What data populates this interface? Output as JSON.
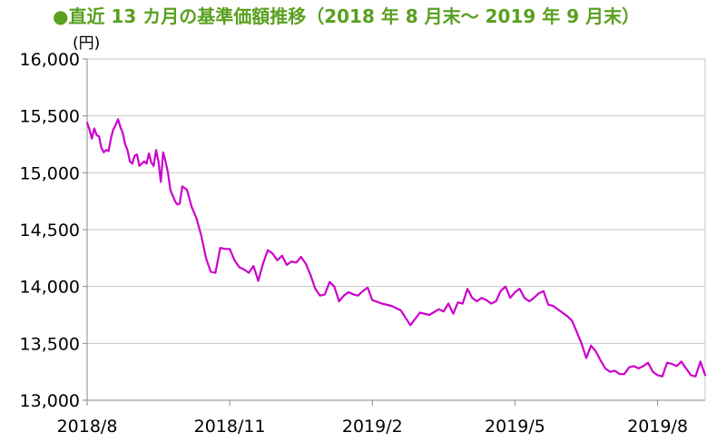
{
  "chart_data": {
    "type": "line",
    "title": "●直近 13 カ月の基準価額推移（2018 年 8 月末～ 2019 年 9 月末）",
    "unit_label": "(円)",
    "xlabel": "",
    "ylabel": "",
    "ylim": [
      13000,
      16000
    ],
    "y_ticks": [
      "13,000",
      "13,500",
      "14,000",
      "14,500",
      "15,000",
      "15,500",
      "16,000"
    ],
    "x_ticks": [
      "2018/8",
      "2018/11",
      "2019/2",
      "2019/5",
      "2019/8"
    ],
    "x_range": [
      0,
      13
    ],
    "grid": true,
    "legend": "none",
    "line_color": "#cc00cc",
    "title_color": "#5aa020",
    "series": [
      {
        "x": [
          0.0,
          0.05,
          0.1,
          0.15,
          0.2,
          0.25,
          0.3,
          0.35,
          0.4,
          0.45,
          0.5,
          0.55,
          0.6,
          0.65,
          0.7,
          0.75,
          0.8,
          0.85,
          0.9,
          0.95,
          1.0,
          1.05,
          1.1,
          1.15,
          1.2,
          1.25,
          1.3,
          1.35,
          1.4,
          1.45,
          1.5,
          1.55,
          1.6,
          1.65,
          1.7,
          1.75,
          1.8,
          1.85,
          1.9,
          1.95,
          2.0,
          2.1,
          2.2,
          2.3,
          2.4,
          2.5,
          2.6,
          2.7,
          2.8,
          2.9,
          3.0,
          3.1,
          3.2,
          3.3,
          3.4,
          3.5,
          3.6,
          3.7,
          3.8,
          3.9,
          4.0,
          4.1,
          4.2,
          4.3,
          4.4,
          4.5,
          4.6,
          4.7,
          4.8,
          4.9,
          5.0,
          5.1,
          5.2,
          5.3,
          5.4,
          5.5,
          5.6,
          5.7,
          5.8,
          5.9,
          6.0,
          6.2,
          6.4,
          6.6,
          6.8,
          7.0,
          7.2,
          7.4,
          7.5,
          7.6,
          7.7,
          7.8,
          7.9,
          8.0,
          8.1,
          8.2,
          8.3,
          8.4,
          8.5,
          8.6,
          8.7,
          8.8,
          8.9,
          9.0,
          9.1,
          9.2,
          9.3,
          9.4,
          9.5,
          9.6,
          9.7,
          9.8,
          9.9,
          10.0,
          10.1,
          10.2,
          10.3,
          10.4,
          10.5,
          10.6,
          10.7,
          10.8,
          10.9,
          11.0,
          11.1,
          11.2,
          11.3,
          11.4,
          11.5,
          11.6,
          11.7,
          11.8,
          11.9,
          12.0,
          12.1,
          12.2,
          12.3,
          12.4,
          12.5,
          12.6,
          12.7,
          12.8,
          12.9,
          13.0
        ],
        "y": [
          15440,
          15380,
          15300,
          15390,
          15330,
          15320,
          15220,
          15180,
          15200,
          15190,
          15300,
          15380,
          15420,
          15470,
          15400,
          15350,
          15250,
          15200,
          15100,
          15080,
          15150,
          15160,
          15060,
          15080,
          15100,
          15080,
          15170,
          15090,
          15060,
          15200,
          15100,
          14920,
          15180,
          15100,
          15000,
          14850,
          14800,
          14750,
          14720,
          14730,
          14880,
          14850,
          14700,
          14600,
          14450,
          14250,
          14130,
          14120,
          14340,
          14330,
          14330,
          14230,
          14170,
          14150,
          14120,
          14180,
          14050,
          14200,
          14320,
          14290,
          14230,
          14270,
          14190,
          14220,
          14210,
          14260,
          14200,
          14100,
          13980,
          13920,
          13930,
          14040,
          14000,
          13870,
          13920,
          13950,
          13930,
          13920,
          13960,
          13990,
          13880,
          13850,
          13830,
          13790,
          13660,
          13770,
          13750,
          13800,
          13780,
          13850,
          13760,
          13860,
          13850,
          13980,
          13900,
          13870,
          13900,
          13880,
          13850,
          13870,
          13960,
          14000,
          13900,
          13950,
          13980,
          13900,
          13870,
          13900,
          13940,
          13960,
          13840,
          13830,
          13800,
          13770,
          13740,
          13700,
          13600,
          13500,
          13370,
          13480,
          13430,
          13350,
          13280,
          13250,
          13260,
          13230,
          13230,
          13290,
          13300,
          13280,
          13300,
          13330,
          13250,
          13220,
          13210,
          13330,
          13320,
          13300,
          13340,
          13280,
          13220,
          13210,
          13340,
          13220
        ]
      }
    ]
  }
}
